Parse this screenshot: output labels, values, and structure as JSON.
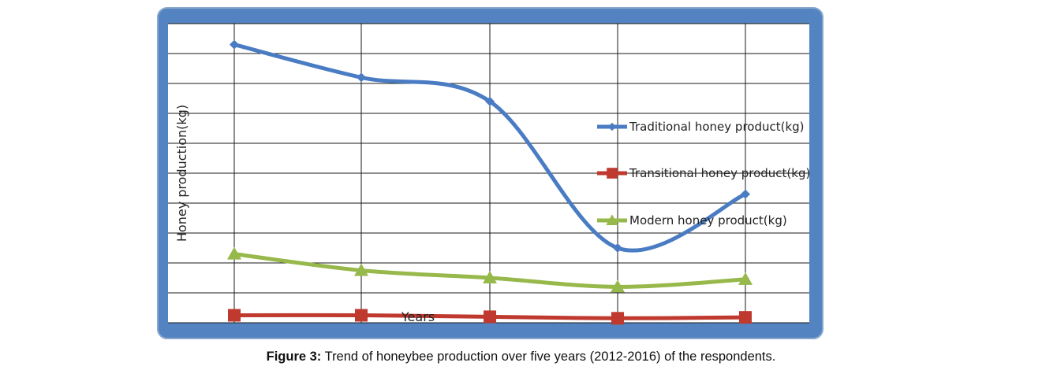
{
  "caption": {
    "prefix": "Figure 3:",
    "text": " Trend of honeybee production over five years (2012-2016) of the respondents."
  },
  "chart_data": {
    "type": "line",
    "xlabel": "Years",
    "ylabel": "Honey production(kg)",
    "x": [
      1,
      2,
      3,
      4,
      5
    ],
    "ylim": [
      0,
      10
    ],
    "grid": true,
    "legend_position": "right",
    "series": [
      {
        "name": "Traditional honey product(kg)",
        "color": "#4a7cc4",
        "marker": "diamond",
        "values": [
          9.3,
          8.2,
          7.4,
          2.5,
          4.3
        ]
      },
      {
        "name": "Transitional honey product(kg)",
        "color": "#c0392f",
        "marker": "square",
        "values": [
          0.25,
          0.25,
          0.2,
          0.15,
          0.18
        ]
      },
      {
        "name": "Modern honey product(kg)",
        "color": "#97b84a",
        "marker": "triangle",
        "values": [
          2.3,
          1.75,
          1.5,
          1.2,
          1.45
        ]
      }
    ]
  }
}
